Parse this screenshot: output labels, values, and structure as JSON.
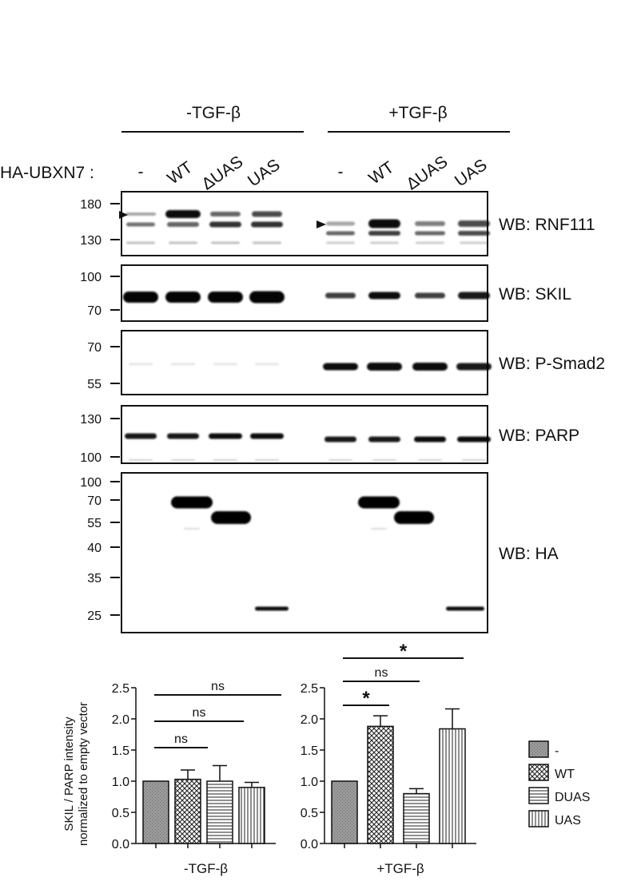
{
  "blots": {
    "conditions": [
      "-TGF-β",
      "+TGF-β"
    ],
    "construct_label": "HA-UBXN7 :",
    "lanes": [
      "-",
      "WT",
      "ΔUAS",
      "UAS",
      "-",
      "WT",
      "ΔUAS",
      "UAS"
    ],
    "panels": [
      {
        "label": "WB: RNF111",
        "mw": [
          "180",
          "130"
        ]
      },
      {
        "label": "WB: SKIL",
        "mw": [
          "100",
          "70"
        ]
      },
      {
        "label": "WB: P-Smad2",
        "mw": [
          "70",
          "55"
        ]
      },
      {
        "label": "WB: PARP",
        "mw": [
          "130",
          "100"
        ]
      },
      {
        "label": "WB: HA",
        "mw": [
          "100",
          "70",
          "55",
          "40",
          "35",
          "25"
        ]
      }
    ]
  },
  "chart_data": [
    {
      "type": "bar",
      "title": "",
      "xlabel": "-TGF-β",
      "ylabel": "SKIL / PARP intensity normalized to empty vector",
      "ylim": [
        0,
        2.5
      ],
      "yticks": [
        "0.0",
        "0.5",
        "1.0",
        "1.5",
        "2.0",
        "2.5"
      ],
      "categories": [
        "-",
        "WT",
        "DUAS",
        "UAS"
      ],
      "values": [
        1.0,
        1.03,
        1.0,
        0.9
      ],
      "errors": [
        0.0,
        0.15,
        0.25,
        0.08
      ],
      "significance": [
        "ns",
        "ns",
        "ns"
      ]
    },
    {
      "type": "bar",
      "title": "",
      "xlabel": "+TGF-β",
      "ylim": [
        0,
        2.5
      ],
      "yticks": [
        "0.0",
        "0.5",
        "1.0",
        "1.5",
        "2.0",
        "2.5"
      ],
      "categories": [
        "-",
        "WT",
        "DUAS",
        "UAS"
      ],
      "values": [
        1.0,
        1.88,
        0.8,
        1.84
      ],
      "errors": [
        0.0,
        0.17,
        0.08,
        0.32
      ],
      "significance": [
        "*",
        "ns",
        "*"
      ]
    }
  ],
  "legend": [
    "-",
    "WT",
    "DUAS",
    "UAS"
  ]
}
